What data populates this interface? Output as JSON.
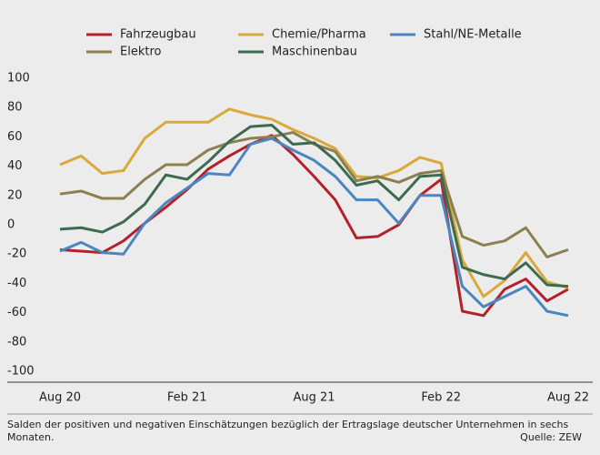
{
  "chart_data": {
    "type": "line",
    "categories": [
      "Aug 20",
      null,
      null,
      null,
      null,
      null,
      "Feb 21",
      null,
      null,
      null,
      null,
      null,
      "Aug 21",
      null,
      null,
      null,
      null,
      null,
      "Feb 22",
      null,
      null,
      null,
      null,
      null,
      "Aug 22"
    ],
    "series": [
      {
        "name": "Fahrzeugbau",
        "color": "#b5212a",
        "values": [
          -17,
          -18,
          -19,
          -11,
          1,
          12,
          24,
          38,
          47,
          55,
          61,
          48,
          33,
          17,
          -9,
          -8,
          0,
          20,
          31,
          -59,
          -62,
          -44,
          -37,
          -52,
          -44
        ]
      },
      {
        "name": "Chemie/Pharma",
        "color": "#d9a93b",
        "values": [
          41,
          47,
          35,
          37,
          59,
          70,
          70,
          70,
          79,
          75,
          72,
          65,
          59,
          52,
          33,
          32,
          37,
          46,
          42,
          -24,
          -49,
          -38,
          -19,
          -39,
          -43
        ]
      },
      {
        "name": "Stahl/NE-Metalle",
        "color": "#4a86c0",
        "values": [
          -18,
          -12,
          -19,
          -20,
          1,
          15,
          25,
          35,
          34,
          55,
          59,
          51,
          44,
          33,
          17,
          17,
          1,
          20,
          20,
          -42,
          -56,
          -49,
          -42,
          -59,
          -62
        ]
      },
      {
        "name": "Elektro",
        "color": "#8b8050",
        "values": [
          21,
          23,
          18,
          18,
          31,
          41,
          41,
          51,
          56,
          59,
          60,
          63,
          55,
          50,
          30,
          33,
          29,
          35,
          37,
          -8,
          -14,
          -11,
          -2,
          -22,
          -17
        ]
      },
      {
        "name": "Maschinenbau",
        "color": "#3d6b50",
        "values": [
          -3,
          -2,
          -5,
          2,
          14,
          34,
          31,
          43,
          57,
          67,
          68,
          55,
          56,
          44,
          27,
          30,
          17,
          33,
          34,
          -29,
          -34,
          -37,
          -26,
          -41,
          -42
        ]
      }
    ],
    "ylim": [
      -100,
      100
    ],
    "yticks": [
      -100,
      -80,
      -60,
      -40,
      -20,
      0,
      20,
      40,
      60,
      80,
      100
    ],
    "grid": false,
    "note": "Salden der positiven und negativen Einschätzungen bezüglich der Ertragslage deutscher Unternehmen in sechs Monaten.",
    "source": "Quelle: ZEW"
  }
}
